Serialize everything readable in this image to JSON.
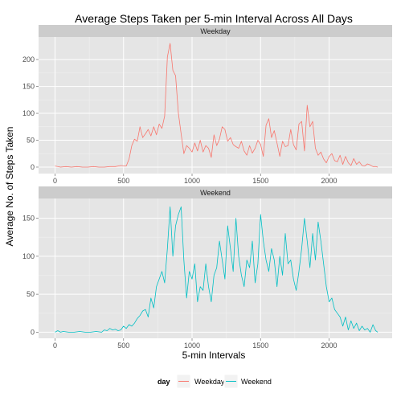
{
  "chart_data": {
    "type": "line",
    "title": "Average Steps Taken per 5-min Interval Across All Days",
    "xlabel": "5-min Intervals",
    "ylabel": "Average No. of Steps Taken",
    "x_ticks": [
      0,
      500,
      1000,
      1500,
      2000
    ],
    "xlim": [
      -120,
      2460
    ],
    "legend": {
      "title": "day",
      "position": "bottom"
    },
    "panels": [
      {
        "strip": "Weekday",
        "ylim": [
          -12,
          242
        ],
        "y_ticks": [
          0,
          50,
          100,
          150,
          200
        ],
        "color": "#F8766D",
        "series": {
          "name": "Weekday",
          "x": [
            0,
            40,
            80,
            120,
            160,
            200,
            240,
            280,
            320,
            360,
            400,
            440,
            480,
            520,
            540,
            560,
            580,
            600,
            620,
            640,
            660,
            680,
            700,
            720,
            740,
            760,
            780,
            800,
            820,
            840,
            860,
            880,
            900,
            920,
            940,
            960,
            980,
            1000,
            1020,
            1040,
            1060,
            1080,
            1100,
            1120,
            1140,
            1160,
            1180,
            1200,
            1220,
            1240,
            1260,
            1280,
            1300,
            1320,
            1340,
            1360,
            1380,
            1400,
            1420,
            1440,
            1460,
            1480,
            1500,
            1520,
            1540,
            1560,
            1580,
            1600,
            1620,
            1640,
            1660,
            1680,
            1700,
            1720,
            1740,
            1760,
            1780,
            1800,
            1820,
            1840,
            1860,
            1880,
            1900,
            1920,
            1940,
            1960,
            1980,
            2000,
            2020,
            2040,
            2060,
            2080,
            2100,
            2120,
            2140,
            2160,
            2180,
            2200,
            2220,
            2240,
            2260,
            2280,
            2300,
            2320,
            2340,
            2355
          ],
          "y": [
            2,
            0,
            1,
            0,
            1,
            0,
            0,
            1,
            0,
            0,
            1,
            1,
            3,
            2,
            15,
            40,
            52,
            48,
            75,
            55,
            62,
            70,
            58,
            75,
            60,
            80,
            72,
            95,
            205,
            230,
            180,
            170,
            100,
            62,
            25,
            40,
            35,
            28,
            45,
            30,
            50,
            28,
            40,
            35,
            18,
            60,
            40,
            52,
            75,
            70,
            48,
            55,
            42,
            38,
            35,
            48,
            30,
            22,
            40,
            26,
            35,
            50,
            42,
            20,
            78,
            90,
            55,
            68,
            45,
            20,
            48,
            38,
            40,
            70,
            42,
            32,
            80,
            85,
            30,
            115,
            75,
            85,
            35,
            22,
            28,
            15,
            8,
            20,
            25,
            12,
            10,
            22,
            5,
            20,
            8,
            3,
            16,
            5,
            10,
            3,
            2,
            6,
            4,
            1,
            1,
            0
          ]
        }
      },
      {
        "strip": "Weekend",
        "ylim": [
          -8,
          176
        ],
        "y_ticks": [
          0,
          50,
          100,
          150
        ],
        "color": "#00BFC4",
        "series": {
          "name": "Weekend",
          "x": [
            0,
            20,
            40,
            60,
            100,
            140,
            180,
            220,
            260,
            300,
            340,
            360,
            380,
            400,
            420,
            440,
            460,
            480,
            500,
            520,
            540,
            560,
            580,
            600,
            620,
            640,
            660,
            680,
            700,
            720,
            740,
            760,
            780,
            800,
            820,
            840,
            860,
            880,
            900,
            920,
            940,
            960,
            980,
            1000,
            1020,
            1040,
            1060,
            1080,
            1100,
            1120,
            1140,
            1160,
            1180,
            1200,
            1220,
            1240,
            1260,
            1280,
            1300,
            1320,
            1340,
            1360,
            1380,
            1400,
            1420,
            1440,
            1460,
            1480,
            1500,
            1520,
            1540,
            1560,
            1580,
            1600,
            1620,
            1640,
            1660,
            1680,
            1700,
            1720,
            1740,
            1760,
            1780,
            1800,
            1820,
            1840,
            1860,
            1880,
            1900,
            1920,
            1940,
            1960,
            1980,
            2000,
            2020,
            2040,
            2060,
            2080,
            2100,
            2120,
            2140,
            2160,
            2180,
            2200,
            2220,
            2240,
            2260,
            2280,
            2300,
            2320,
            2340,
            2355
          ],
          "y": [
            0,
            2,
            0,
            1,
            0,
            0,
            1,
            0,
            0,
            1,
            0,
            3,
            2,
            5,
            3,
            4,
            2,
            3,
            8,
            5,
            10,
            8,
            12,
            18,
            22,
            28,
            30,
            20,
            45,
            32,
            60,
            70,
            80,
            65,
            110,
            165,
            100,
            140,
            155,
            165,
            95,
            45,
            80,
            70,
            90,
            40,
            60,
            55,
            90,
            60,
            40,
            75,
            85,
            120,
            95,
            70,
            140,
            110,
            80,
            150,
            100,
            75,
            60,
            95,
            85,
            120,
            65,
            90,
            155,
            120,
            95,
            80,
            110,
            95,
            60,
            100,
            75,
            130,
            90,
            95,
            70,
            55,
            80,
            110,
            150,
            120,
            85,
            130,
            95,
            145,
            120,
            90,
            60,
            40,
            45,
            30,
            25,
            20,
            8,
            20,
            3,
            15,
            5,
            12,
            2,
            8,
            3,
            5,
            0,
            10,
            2,
            0
          ]
        }
      }
    ]
  }
}
